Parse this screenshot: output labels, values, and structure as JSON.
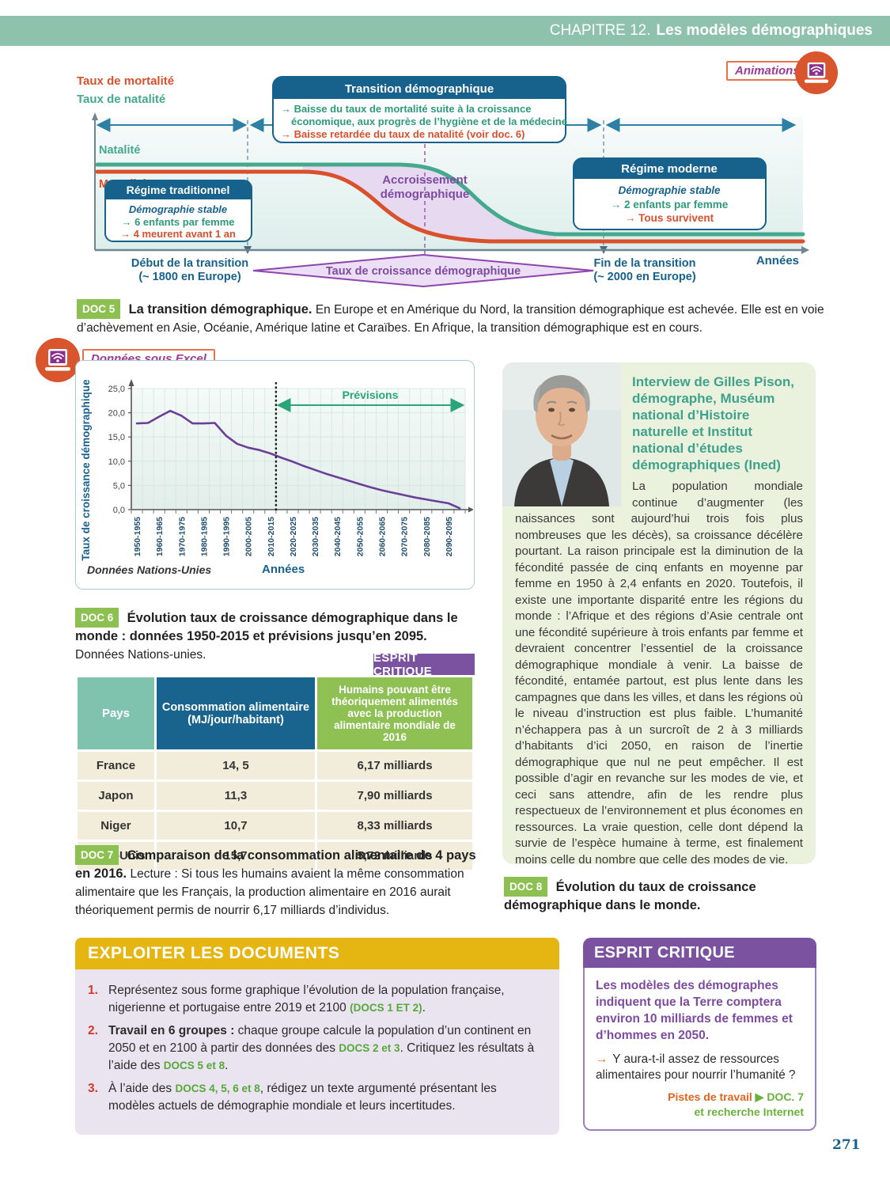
{
  "page": {
    "chapter_label": "CHAPITRE 12.",
    "chapter_title": "Les modèles démographiques",
    "page_number": "271",
    "animations_label": "Animations",
    "excel_label": "Données sous Excel"
  },
  "colors": {
    "band_green": "#8ec2ad",
    "badge_green": "#8cc152",
    "box_blue": "#17618d",
    "natality_teal": "#45a98e",
    "mortality_red": "#d8502c",
    "purple": "#7d4ba1",
    "chart_line_purple": "#6b3f97",
    "gold": "#e5b512",
    "orange": "#e2641f",
    "doc_ref_green": "#56a839",
    "esprit_purple": "#7b52a0"
  },
  "doc5": {
    "badge": "DOC 5",
    "caption_bold": "La transition démographique.",
    "caption_text": "En Europe et en Amérique du Nord, la transition démographique est achevée. Elle est en voie d’achèvement en Asie, Océanie, Amérique latine et Caraïbes. En Afrique, la transition démographique est en cours.",
    "diagram": {
      "ylabel_mortality": "Taux de mortalité",
      "ylabel_natality": "Taux de natalité",
      "natalite": "Natalité",
      "mortalite": "Mortalité",
      "trans_title": "Transition démographique",
      "trans_l1": "→ Baisse du taux de mortalité suite à la croissance",
      "trans_l2": "économique, aux progrès de l’hygiène et de la médecine",
      "trans_l3": "→ Baisse retardée du taux de natalité (voir doc. 6)",
      "trad_title": "Régime traditionnel",
      "trad_sub": "Démographie stable",
      "trad_l1": "→ 6 enfants par femme",
      "trad_l2": "→ 4 meurent avant 1 an",
      "accr1": "Accroissement",
      "accr2": "démographique",
      "mod_title": "Régime moderne",
      "mod_sub": "Démographie stable",
      "mod_l1": "→ 2 enfants par femme",
      "mod_l2": "→ Tous survivent",
      "years": "Années",
      "debut1": "Début de la transition",
      "debut2": "(~ 1800 en Europe)",
      "fin1": "Fin de la transition",
      "fin2": "(~ 2000 en Europe)",
      "diamond": "Taux de croissance démographique"
    }
  },
  "chart_data": {
    "type": "line",
    "ylabel": "Taux de croissance démographique",
    "xlabel": "Années",
    "source": "Données Nations-Unies",
    "prevision_label": "Prévisions",
    "ylim": [
      0,
      25
    ],
    "yticks": [
      "0,0",
      "5,0",
      "10,0",
      "15,0",
      "20,0",
      "25,0"
    ],
    "periods": [
      "1950-1955",
      "1955-1960",
      "1960-1965",
      "1965-1970",
      "1970-1975",
      "1975-1980",
      "1980-1985",
      "1985-1990",
      "1990-1995",
      "1995-2000",
      "2000-2005",
      "2005-2010",
      "2010-2015",
      "2015-2020",
      "2020-2025",
      "2025-2030",
      "2030-2035",
      "2035-2040",
      "2040-2045",
      "2045-2050",
      "2050-2055",
      "2055-2060",
      "2060-2065",
      "2065-2070",
      "2070-2075",
      "2075-2080",
      "2080-2085",
      "2085-2090",
      "2090-2095",
      "2095-2100"
    ],
    "x_tick_labels": [
      "1950-1955",
      "1960-1965",
      "1970-1975",
      "1980-1985",
      "1990-1995",
      "2000-2005",
      "2010-2015",
      "2020-2025",
      "2030-2035",
      "2040-2045",
      "2050-2055",
      "2060-2065",
      "2070-2075",
      "2080-2085",
      "2090-2095"
    ],
    "values": [
      17.8,
      17.9,
      19.2,
      20.4,
      19.4,
      17.8,
      17.8,
      17.9,
      15.3,
      13.6,
      12.8,
      12.3,
      11.6,
      10.7,
      9.9,
      9.0,
      8.2,
      7.4,
      6.7,
      6.0,
      5.3,
      4.6,
      4.0,
      3.5,
      3.0,
      2.5,
      2.1,
      1.7,
      1.3,
      0.3
    ],
    "prevision_start_index": 13,
    "line_color": "#6b3f97",
    "grid": true,
    "legend_position": "none"
  },
  "doc6": {
    "badge": "DOC 6",
    "caption_bold": "Évolution taux de croissance démographique dans le monde : données 1950-2015 et prévisions jusqu’en 2095.",
    "caption_text": "Données Nations-unies."
  },
  "table": {
    "esprit_badge": "ESPRIT CRITIQUE",
    "headers": [
      "Pays",
      "Consommation alimentaire (MJ/jour/habitant)",
      "Humains pouvant être théoriquement alimentés avec la production alimentaire mondiale de 2016"
    ],
    "rows": [
      {
        "country": "France",
        "consumption": "14, 5",
        "humans": "6,17 milliards"
      },
      {
        "country": "Japon",
        "consumption": "11,3",
        "humans": "7,90 milliards"
      },
      {
        "country": "Niger",
        "consumption": "10,7",
        "humans": "8,33 milliards"
      },
      {
        "country": "États-Unis",
        "consumption": "15,7",
        "humans": "5,72 milliards"
      }
    ]
  },
  "doc7": {
    "badge": "DOC 7",
    "caption_bold": "Comparaison de la consommation alimentaire de 4 pays en 2016.",
    "caption_text": "Lecture : Si tous les humains avaient la même consommation alimentaire que les Français, la production alimentaire en 2016 aurait théoriquement permis de nourrir 6,17 milliards d’individus."
  },
  "interview": {
    "title": "Interview de Gilles Pison, démographe, Muséum national d’Histoire naturelle et Institut national d’études démographiques (Ined)",
    "body": "La population mondiale continue d’augmenter (les naissances sont aujourd’hui trois fois plus nombreuses que les décès), sa croissance décélère pourtant. La raison principale est la diminution de la fécondité passée de cinq enfants en moyenne par femme en 1950 à 2,4 enfants en 2020. Toutefois, il existe une importante disparité entre les régions du monde : l’Afrique et des régions d’Asie centrale ont une fécondité supérieure à trois enfants par femme et devraient concentrer l’essentiel de la croissance démographique mondiale à venir. La baisse de fécondité, entamée partout, est plus lente dans les campagnes que dans les villes, et dans les régions où le niveau d’instruction est plus faible. L’humanité n’échappera pas à un surcroît de 2 à 3 milliards d’habitants d’ici 2050, en raison de l’inertie démographique que nul ne peut empêcher. Il est possible d’agir en revanche sur les modes de vie, et ceci sans attendre, afin de les rendre plus respectueux de l’environnement et plus économes en ressources. La vraie question, celle dont dépend la survie de l’espèce humaine à terme, est finalement moins celle du nombre que celle des modes de vie."
  },
  "doc8": {
    "badge": "DOC 8",
    "caption_bold": "Évolution du taux de croissance démographique dans le monde."
  },
  "exploiter": {
    "title": "EXPLOITER LES DOCUMENTS",
    "items": [
      {
        "num": "1.",
        "bold": "",
        "text": "Représentez sous forme graphique l’évolution de la population française, nigerienne et portugaise entre 2019 et 2100 ",
        "ref": "(DOCS 1 ET 2)",
        "text2": ".",
        "ref2": "",
        "end": ""
      },
      {
        "num": "2.",
        "bold": "Travail en 6 groupes :",
        "text": " chaque groupe calcule la population d’un continent en 2050 et en 2100 à partir des données des ",
        "ref": "DOCS 2 et 3",
        "text2": ". Critiquez les résultats à l’aide des ",
        "ref2": "DOCS 5 et 8",
        "end": "."
      },
      {
        "num": "3.",
        "bold": "",
        "text": "À l’aide des ",
        "ref": "DOCS 4, 5, 6 et 8",
        "text2": ", rédigez un texte argumenté présentant les modèles actuels de démographie mondiale et leurs incertitudes.",
        "ref2": "",
        "end": ""
      }
    ]
  },
  "esprit": {
    "title": "ESPRIT CRITIQUE",
    "statement": "Les modèles des démographes indiquent que la Terre comptera environ 10 milliards de femmes et d’hommes en 2050.",
    "arrow": "→",
    "question": "Y aura-t-il assez de ressources alimentaires pour nourrir l’humanité ?",
    "pistes_label": "Pistes de travail",
    "pistes_ref": "▶ DOC. 7",
    "pistes_ref2": "et recherche Internet"
  }
}
